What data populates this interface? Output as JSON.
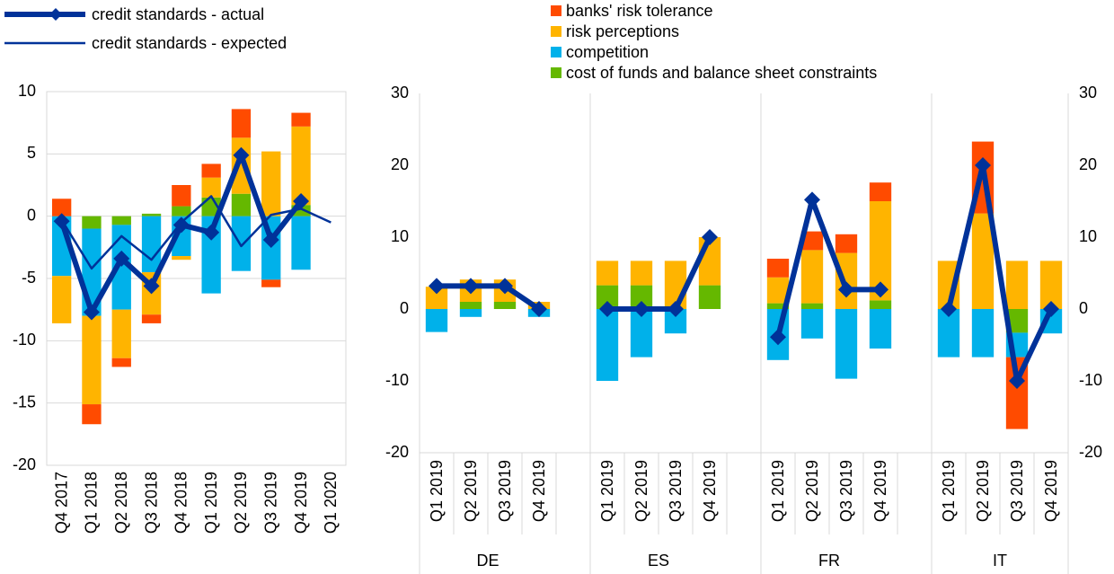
{
  "chart_data": [
    {
      "type": "bar",
      "categories": [
        "Q4 2017",
        "Q1 2018",
        "Q2 2018",
        "Q3 2018",
        "Q4 2018",
        "Q1 2019",
        "Q2 2019",
        "Q3 2019",
        "Q4 2019",
        "Q1 2020"
      ],
      "series": [
        {
          "name": "banks' risk tolerance",
          "color": "#ff4b00",
          "type": "bar",
          "values": [
            1.4,
            -1.6,
            -0.7,
            -0.7,
            1.7,
            1.1,
            2.3,
            -0.6,
            1.1,
            null
          ]
        },
        {
          "name": "risk perceptions",
          "color": "#ffb400",
          "type": "bar",
          "values": [
            -3.8,
            -7.1,
            -3.9,
            -3.4,
            -0.3,
            1.6,
            4.5,
            5.2,
            6.3,
            null
          ]
        },
        {
          "name": "competition",
          "color": "#00b1ea",
          "type": "bar",
          "values": [
            -4.8,
            -7.0,
            -6.8,
            -4.5,
            -3.2,
            -6.2,
            -4.4,
            -5.1,
            -4.3,
            null
          ]
        },
        {
          "name": "cost of funds and balance sheet constraints",
          "color": "#65b800",
          "type": "bar",
          "values": [
            0,
            -1.0,
            -0.7,
            0.2,
            0.8,
            1.5,
            1.8,
            0,
            0.9,
            null
          ]
        },
        {
          "name": "credit standards - actual",
          "color": "#003299",
          "type": "line",
          "width": 6,
          "markers": true,
          "values": [
            -0.4,
            -7.7,
            -3.4,
            -5.6,
            -0.7,
            -1.3,
            4.9,
            -1.9,
            1.2,
            null
          ]
        },
        {
          "name": "credit standards - expected",
          "color": "#003299",
          "type": "line",
          "width": 2.5,
          "markers": false,
          "values": [
            -0.3,
            -4.2,
            -1.6,
            -3.5,
            -0.5,
            1.6,
            -2.4,
            0.1,
            0.6,
            -0.5
          ]
        }
      ],
      "ylim": [
        -20,
        10
      ],
      "yticks": [
        -20,
        -15,
        -10,
        -5,
        0,
        5,
        10
      ],
      "grid": true
    },
    {
      "type": "bar",
      "categories": [
        "Q1 2019",
        "Q2 2019",
        "Q3 2019",
        "Q4 2019",
        null,
        "Q1 2019",
        "Q2 2019",
        "Q3 2019",
        "Q4 2019",
        null,
        "Q1 2019",
        "Q2 2019",
        "Q3 2019",
        "Q4 2019",
        null,
        "Q1 2019",
        "Q2 2019",
        "Q3 2019",
        "Q4 2019"
      ],
      "groups": [
        "DE",
        "ES",
        "FR",
        "IT"
      ],
      "series": [
        {
          "color": "#ff4b00",
          "type": "bar",
          "values": [
            0,
            0,
            0,
            0,
            null,
            0,
            0,
            0,
            0,
            null,
            2.6,
            2.6,
            2.6,
            2.6,
            null,
            0,
            10,
            -10,
            0
          ]
        },
        {
          "color": "#ffb400",
          "type": "bar",
          "values": [
            3.1,
            3.1,
            3.1,
            1,
            null,
            3.4,
            3.4,
            6.7,
            6.7,
            null,
            3.6,
            7.4,
            7.8,
            13.8,
            null,
            6.7,
            13.3,
            6.7,
            6.7
          ]
        },
        {
          "color": "#00b1ea",
          "type": "bar",
          "values": [
            -3.2,
            -1.1,
            0,
            -1.1,
            null,
            -10,
            -6.7,
            -3.4,
            0,
            null,
            -7.1,
            -4.1,
            -9.7,
            -5.5,
            null,
            -6.7,
            -6.7,
            -3.4,
            -3.4
          ]
        },
        {
          "color": "#65b800",
          "type": "bar",
          "values": [
            0,
            1,
            1,
            0,
            null,
            3.3,
            3.3,
            0,
            3.3,
            null,
            0.8,
            0.8,
            0,
            1.2,
            null,
            0,
            0,
            -3.3,
            0
          ]
        },
        {
          "color": "#003299",
          "type": "line",
          "width": 6,
          "markers": true,
          "values": [
            3.2,
            3.2,
            3.2,
            0,
            null,
            0,
            0,
            0,
            10,
            null,
            -3.9,
            15.2,
            2.7,
            2.7,
            null,
            0,
            20,
            -10,
            0
          ]
        }
      ],
      "ylim": [
        -20,
        30
      ],
      "yticks": [
        -20,
        -10,
        0,
        10,
        20,
        30
      ],
      "y2lim": [
        -20,
        30
      ],
      "y2ticks": [
        -20,
        -10,
        0,
        10,
        20,
        30
      ],
      "grid": false
    }
  ]
}
